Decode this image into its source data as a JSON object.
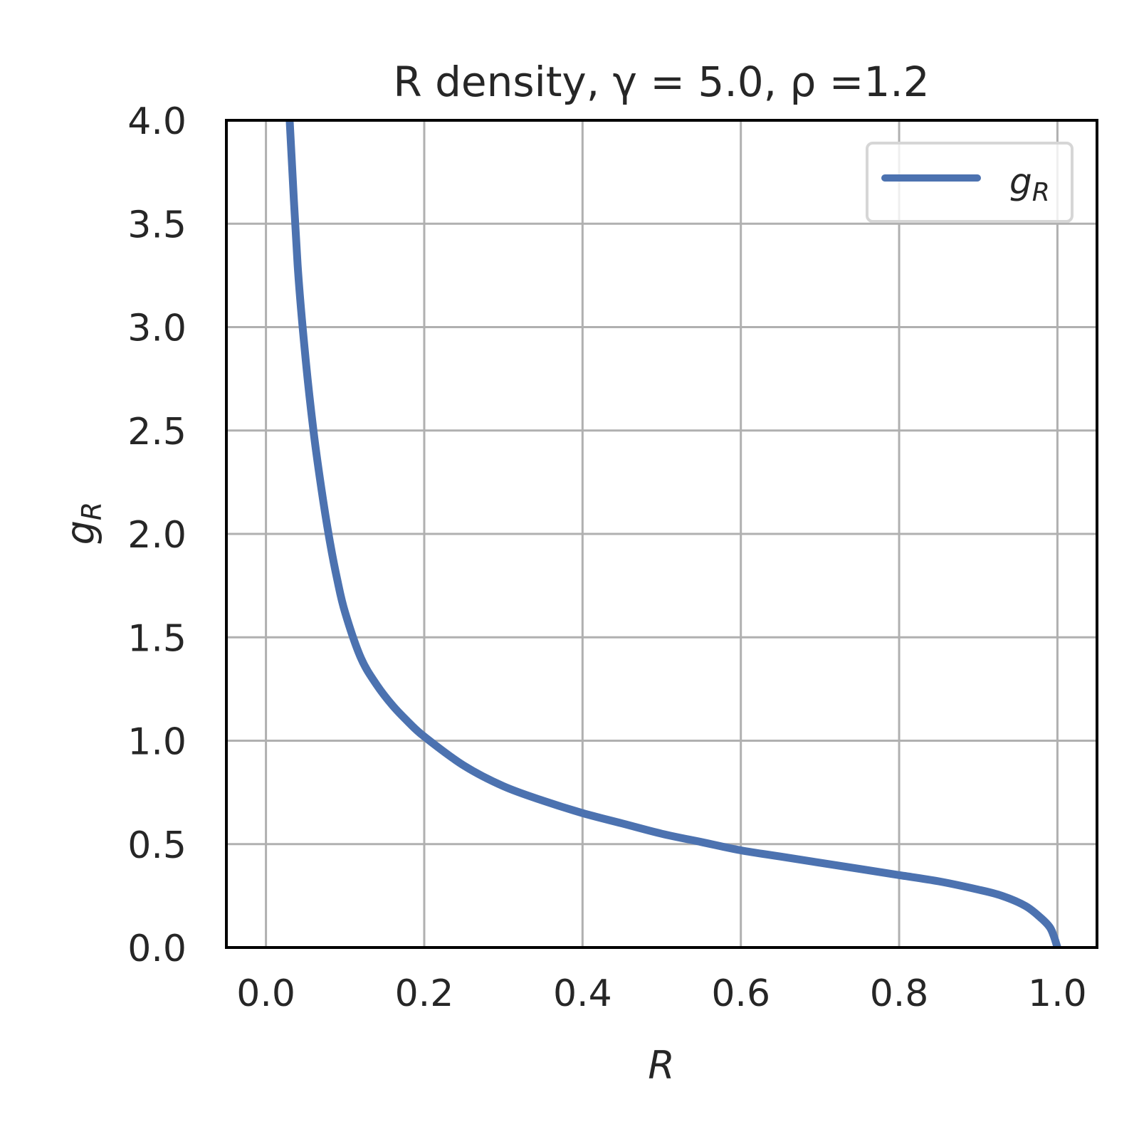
{
  "chart_data": {
    "type": "line",
    "title": "R density, γ = 5.0, ρ =1.2",
    "xlabel": "R",
    "ylabel": "g",
    "ylabel_sub": "R",
    "xlim": [
      -0.05,
      1.05
    ],
    "ylim": [
      0.0,
      4.0
    ],
    "grid": true,
    "legend_placement": "top-right",
    "x_ticks": [
      "0.0",
      "0.2",
      "0.4",
      "0.6",
      "0.8",
      "1.0"
    ],
    "x_tick_values": [
      0.0,
      0.2,
      0.4,
      0.6,
      0.8,
      1.0
    ],
    "y_ticks": [
      "0.0",
      "0.5",
      "1.0",
      "1.5",
      "2.0",
      "2.5",
      "3.0",
      "3.5",
      "4.0"
    ],
    "y_tick_values": [
      0.0,
      0.5,
      1.0,
      1.5,
      2.0,
      2.5,
      3.0,
      3.5,
      4.0
    ],
    "series": [
      {
        "name": "g",
        "name_sub": "R",
        "color": "#4c72b0",
        "x": [
          0.03,
          0.04,
          0.05,
          0.06,
          0.07,
          0.08,
          0.09,
          0.1,
          0.12,
          0.14,
          0.16,
          0.18,
          0.2,
          0.25,
          0.3,
          0.35,
          0.4,
          0.45,
          0.5,
          0.55,
          0.6,
          0.65,
          0.7,
          0.75,
          0.8,
          0.85,
          0.9,
          0.93,
          0.96,
          0.98,
          0.99,
          0.995,
          1.0
        ],
        "y": [
          4.0,
          3.3,
          2.85,
          2.5,
          2.22,
          1.98,
          1.78,
          1.62,
          1.4,
          1.27,
          1.17,
          1.09,
          1.02,
          0.88,
          0.78,
          0.71,
          0.65,
          0.6,
          0.55,
          0.51,
          0.47,
          0.44,
          0.41,
          0.38,
          0.35,
          0.32,
          0.28,
          0.25,
          0.2,
          0.14,
          0.1,
          0.06,
          0.0
        ]
      }
    ]
  }
}
